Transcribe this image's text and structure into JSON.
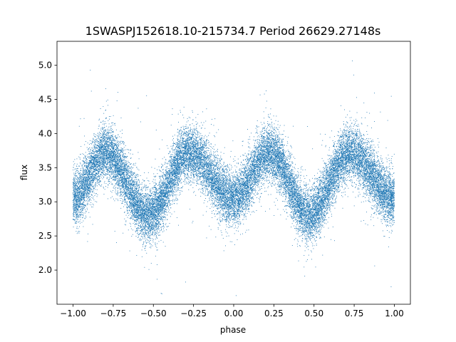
{
  "chart_data": {
    "type": "scatter",
    "title": "1SWASPJ152618.10-215734.7 Period 26629.27148s",
    "xlabel": "phase",
    "ylabel": "flux",
    "xlim": [
      -1.1,
      1.1
    ],
    "ylim": [
      1.5,
      5.35
    ],
    "xticks": [
      -1.0,
      -0.75,
      -0.5,
      -0.25,
      0.0,
      0.25,
      0.5,
      0.75,
      1.0
    ],
    "xtick_labels": [
      "−1.00",
      "−0.75",
      "−0.50",
      "−0.25",
      "0.00",
      "0.25",
      "0.50",
      "0.75",
      "1.00"
    ],
    "yticks": [
      2.0,
      2.5,
      3.0,
      3.5,
      4.0,
      4.5,
      5.0
    ],
    "ytick_labels": [
      "2.0",
      "2.5",
      "3.0",
      "3.5",
      "4.0",
      "4.5",
      "5.0"
    ],
    "grid": false,
    "marker_color": "#1f77b4",
    "series": [
      {
        "x_range": [
          -1.0,
          1.0
        ],
        "light_curve_x": [
          -1.0,
          -0.8,
          -0.53,
          -0.28,
          0.0,
          0.22,
          0.47,
          0.72,
          1.0
        ],
        "light_curve_y": [
          3.05,
          3.72,
          2.8,
          3.72,
          3.05,
          3.72,
          2.8,
          3.72,
          3.05
        ],
        "scatter_sigma": 0.2,
        "point_count": 26000
      }
    ]
  }
}
